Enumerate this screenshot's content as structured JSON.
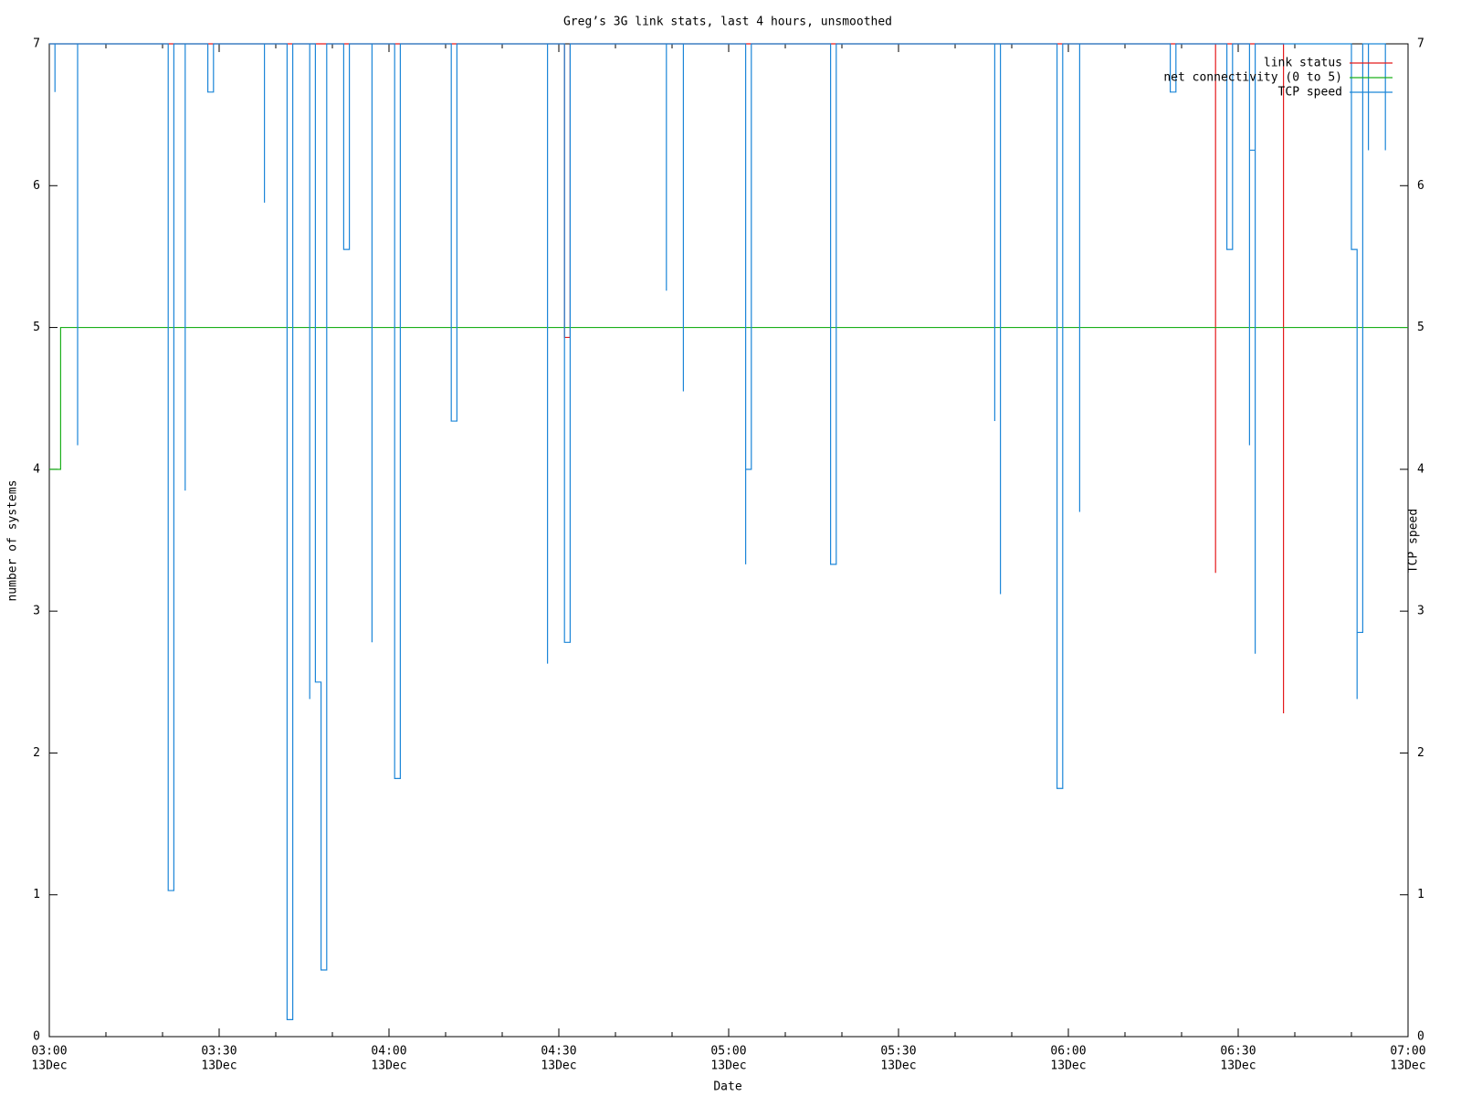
{
  "chart_data": {
    "type": "line",
    "title": "Greg’s 3G link stats, last 4 hours, unsmoothed",
    "xlabel": "Date",
    "ylabel": "number of systems",
    "y2label": "TCP speed",
    "xlim": [
      "03:00",
      "07:00"
    ],
    "xticks": [
      "03:00",
      "03:30",
      "04:00",
      "04:30",
      "05:00",
      "05:30",
      "06:00",
      "06:30",
      "07:00"
    ],
    "x_date": "13Dec",
    "ylim": [
      0,
      7
    ],
    "yticks": [
      0,
      1,
      2,
      3,
      4,
      5,
      6,
      7
    ],
    "y2lim": [
      0,
      7
    ],
    "y2ticks": [
      0,
      1,
      2,
      3,
      4,
      5,
      6,
      7
    ],
    "legend": "top-right",
    "series": [
      {
        "name": "link status",
        "color": "#e41a1c",
        "x": [
          "03:00",
          "04:31",
          "04:31",
          "04:32",
          "04:32",
          "06:26",
          "06:26",
          "06:26",
          "06:38",
          "06:38",
          "06:38"
        ],
        "values": [
          7,
          7,
          4.93,
          4.93,
          7,
          7,
          3.27,
          7,
          7,
          2.28,
          7
        ]
      },
      {
        "name": "net connectivity (0 to 5)",
        "color": "#1cb01c",
        "x": [
          "03:00",
          "03:02",
          "03:02",
          "07:00"
        ],
        "values": [
          4,
          4,
          5,
          5
        ]
      },
      {
        "name": "TCP speed",
        "color": "#1c86d8",
        "axis": "y2",
        "x": [
          "03:00",
          "03:01",
          "03:01",
          "03:01",
          "03:05",
          "03:05",
          "03:05",
          "03:21",
          "03:21",
          "03:22",
          "03:22",
          "03:24",
          "03:24",
          "03:24",
          "03:28",
          "03:28",
          "03:29",
          "03:29",
          "03:38",
          "03:38",
          "03:38",
          "03:42",
          "03:42",
          "03:43",
          "03:43",
          "03:46",
          "03:46",
          "03:46",
          "03:47",
          "03:47",
          "03:48",
          "03:48",
          "03:49",
          "03:49",
          "03:52",
          "03:52",
          "03:53",
          "03:53",
          "03:57",
          "03:57",
          "03:57",
          "04:01",
          "04:01",
          "04:02",
          "04:02",
          "04:11",
          "04:11",
          "04:12",
          "04:12",
          "04:28",
          "04:28",
          "04:28",
          "04:31",
          "04:31",
          "04:32",
          "04:32",
          "04:49",
          "04:49",
          "04:49",
          "04:52",
          "04:52",
          "04:52",
          "05:03",
          "05:03",
          "05:03",
          "05:04",
          "05:04",
          "05:18",
          "05:18",
          "05:19",
          "05:19",
          "05:47",
          "05:47",
          "05:47",
          "05:48",
          "05:48",
          "05:48",
          "05:58",
          "05:58",
          "05:59",
          "05:59",
          "06:02",
          "06:02",
          "06:02",
          "06:18",
          "06:18",
          "06:19",
          "06:19",
          "06:28",
          "06:28",
          "06:29",
          "06:29",
          "06:32",
          "06:32",
          "06:32",
          "06:33",
          "06:33",
          "06:33",
          "06:50",
          "06:50",
          "06:51",
          "06:51",
          "06:51",
          "06:52",
          "06:52",
          "06:53",
          "06:53",
          "06:53",
          "06:56",
          "06:56",
          "06:56"
        ],
        "values": [
          7,
          7,
          6.66,
          7,
          7,
          4.17,
          7,
          7,
          1.03,
          1.03,
          7,
          7,
          3.85,
          7,
          7,
          6.66,
          6.66,
          7,
          7,
          5.88,
          7,
          7,
          0.12,
          0.12,
          7,
          7,
          2.38,
          7,
          7,
          2.5,
          2.5,
          0.47,
          0.47,
          7,
          7,
          5.55,
          5.55,
          7,
          7,
          2.78,
          7,
          7,
          1.82,
          1.82,
          7,
          7,
          4.34,
          4.34,
          7,
          7,
          2.63,
          7,
          7,
          2.78,
          2.78,
          7,
          7,
          5.26,
          7,
          7,
          4.55,
          7,
          7,
          3.33,
          4,
          4,
          7,
          7,
          3.33,
          3.33,
          7,
          7,
          4.34,
          7,
          7,
          3.12,
          7,
          7,
          1.75,
          1.75,
          7,
          7,
          3.7,
          7,
          7,
          6.66,
          6.66,
          7,
          7,
          5.55,
          5.55,
          7,
          7,
          4.17,
          6.25,
          6.25,
          2.7,
          7,
          7,
          5.55,
          5.55,
          2.38,
          2.85,
          2.85,
          7,
          7,
          6.25,
          7,
          7,
          6.25,
          7
        ]
      }
    ]
  }
}
